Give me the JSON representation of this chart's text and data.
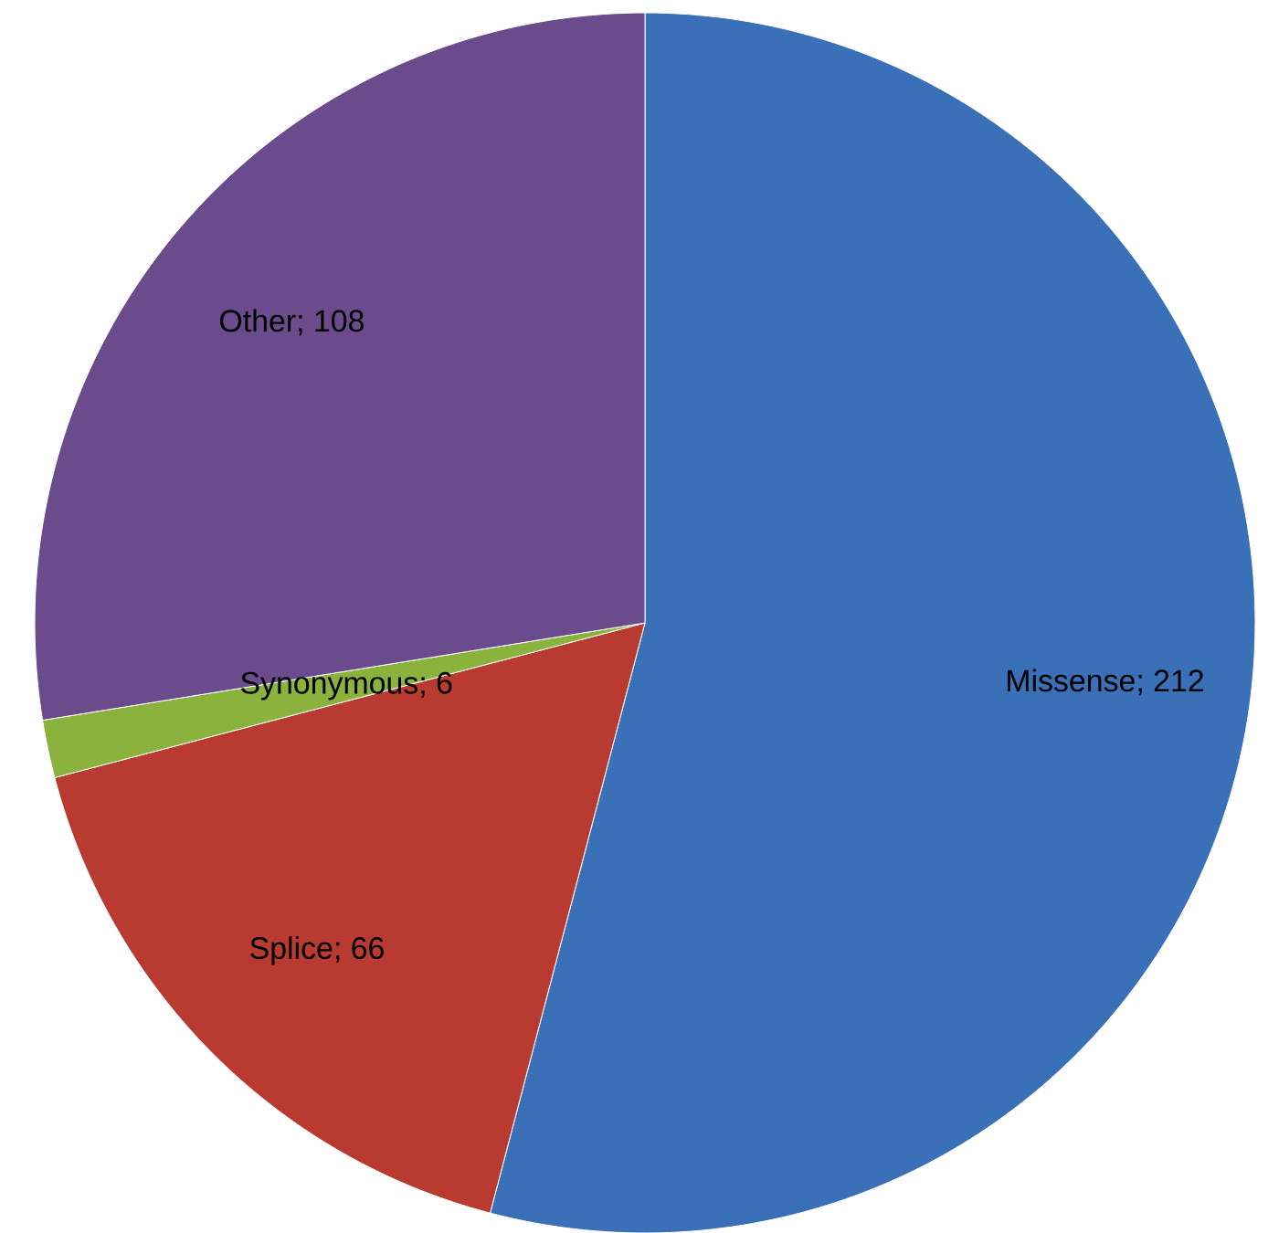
{
  "chart_data": {
    "type": "pie",
    "categories": [
      "Missense",
      "Splice",
      "Synonymous",
      "Other"
    ],
    "values": [
      212,
      66,
      6,
      108
    ],
    "data_labels": true,
    "value_labels": [
      "; 212",
      "; 66",
      "; 6",
      "; 108"
    ],
    "colors": [
      "#3a70b8",
      "#b83a31",
      "#8ab23c",
      "#6a4c8c"
    ]
  }
}
